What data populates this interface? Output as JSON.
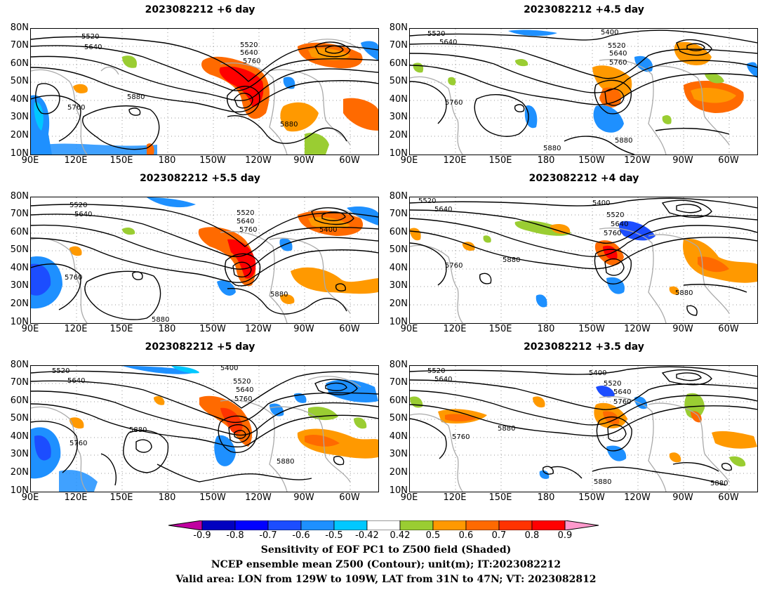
{
  "panels": [
    {
      "title": "2023082212  +6 day"
    },
    {
      "title": "2023082212  +4.5 day"
    },
    {
      "title": "2023082212  +5.5 day"
    },
    {
      "title": "2023082212  +4 day"
    },
    {
      "title": "2023082212  +5 day"
    },
    {
      "title": "2023082212  +3.5 day"
    }
  ],
  "axes": {
    "lat_labels": [
      "80N",
      "70N",
      "60N",
      "50N",
      "40N",
      "30N",
      "20N",
      "10N"
    ],
    "lon_labels": [
      "90E",
      "120E",
      "150E",
      "180",
      "150W",
      "120W",
      "90W",
      "60W"
    ]
  },
  "contour_labels": {
    "p0": [
      "5520",
      "5640",
      "5760",
      "5880",
      "5520",
      "5640",
      "5760",
      "5880"
    ],
    "p1": [
      "5520",
      "5640",
      "5760",
      "5880",
      "5400",
      "5520",
      "5640",
      "5760",
      "5880"
    ],
    "p2": [
      "5520",
      "5640",
      "5760",
      "5880",
      "5520",
      "5640",
      "5760",
      "5400",
      "5880"
    ],
    "p3": [
      "5520",
      "5640",
      "5760",
      "5880",
      "5400",
      "5520",
      "5640",
      "5760",
      "5880"
    ],
    "p4": [
      "5520",
      "5640",
      "5880",
      "5760",
      "5400",
      "5520",
      "5640",
      "5760",
      "5880"
    ],
    "p5": [
      "5520",
      "5640",
      "5760",
      "5880",
      "5400",
      "5520",
      "5640",
      "5760",
      "5880",
      "5880"
    ]
  },
  "colorbar": {
    "labels": [
      "-0.9",
      "-0.8",
      "-0.7",
      "-0.6",
      "-0.5",
      "-0.42",
      "0.42",
      "0.5",
      "0.6",
      "0.7",
      "0.8",
      "0.9"
    ],
    "colors": [
      "#0000c0",
      "#0000ff",
      "#1c4dff",
      "#1e90ff",
      "#00c8ff",
      "#ffffff",
      "#9acd32",
      "#ff9900",
      "#ff6a00",
      "#ff3300",
      "#ff0000"
    ],
    "low_color": "#c000a0",
    "high_color": "#ff99cc"
  },
  "captions": {
    "line1": "Sensitivity of EOF PC1 to Z500 field (Shaded)",
    "line2": "NCEP ensemble mean Z500 (Contour); unit(m); IT:2023082212",
    "line3": "Valid area: LON from 129W to 109W, LAT from 31N to 47N; VT: 2023082812"
  }
}
